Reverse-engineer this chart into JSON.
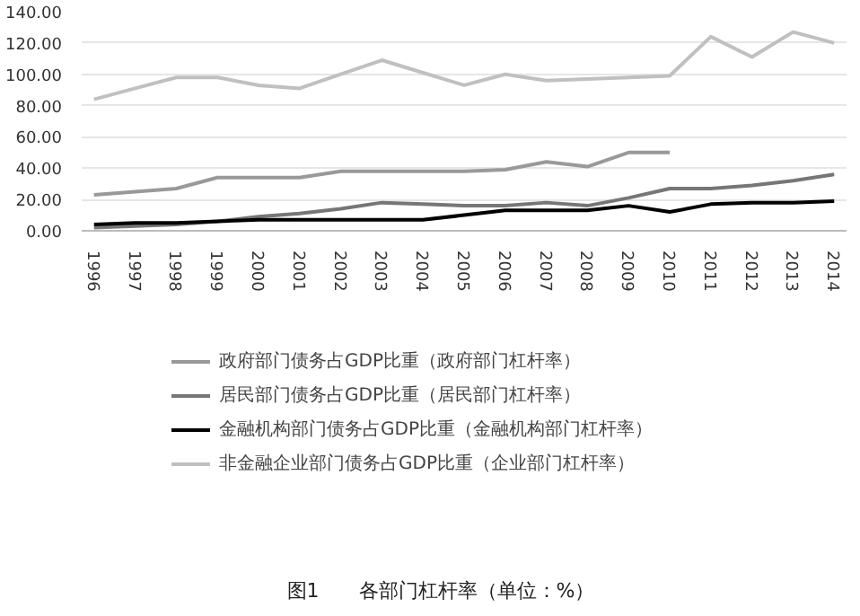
{
  "chart_data": {
    "type": "line",
    "categories": [
      "1996",
      "1997",
      "1998",
      "1999",
      "2000",
      "2001",
      "2002",
      "2003",
      "2004",
      "2005",
      "2006",
      "2007",
      "2008",
      "2009",
      "2010",
      "2011",
      "2012",
      "2013",
      "2014"
    ],
    "series": [
      {
        "name": "政府部门债务占GDP比重（政府部门杠杆率）",
        "color": "#999999",
        "values": [
          23,
          25,
          27,
          34,
          34,
          34,
          38,
          38,
          38,
          38,
          39,
          44,
          41,
          50,
          50,
          null,
          null,
          null,
          null
        ]
      },
      {
        "name": "居民部门债务占GDP比重（居民部门杠杆率）",
        "color": "#767676",
        "values": [
          2,
          3,
          4,
          6,
          9,
          11,
          14,
          18,
          17,
          16,
          16,
          18,
          16,
          21,
          27,
          27,
          29,
          32,
          36
        ]
      },
      {
        "name": "金融机构部门债务占GDP比重（金融机构部门杠杆率）",
        "color": "#000000",
        "values": [
          4,
          5,
          5,
          6,
          7,
          7,
          7,
          7,
          7,
          10,
          13,
          13,
          13,
          16,
          12,
          17,
          18,
          18,
          19
        ]
      },
      {
        "name": "非金融企业部门债务占GDP比重（企业部门杠杆率）",
        "color": "#c0c0c0",
        "values": [
          84,
          91,
          98,
          98,
          93,
          91,
          100,
          109,
          101,
          93,
          100,
          96,
          97,
          98,
          99,
          124,
          111,
          127,
          120
        ]
      }
    ],
    "ylim": [
      0,
      140
    ],
    "yticks": [
      {
        "value": 0,
        "label": "0.00"
      },
      {
        "value": 20,
        "label": "20.00"
      },
      {
        "value": 40,
        "label": "40.00"
      },
      {
        "value": 60,
        "label": "60.00"
      },
      {
        "value": 80,
        "label": "80.00"
      },
      {
        "value": 100,
        "label": "100.00"
      },
      {
        "value": 120,
        "label": "120.00"
      },
      {
        "value": 140,
        "label": "140.00"
      }
    ],
    "grid": "y",
    "legend": "bottom",
    "marker": "none",
    "line_style": "solid",
    "annotations": [
      "图1　　各部门杠杆率（单位：%）"
    ]
  }
}
